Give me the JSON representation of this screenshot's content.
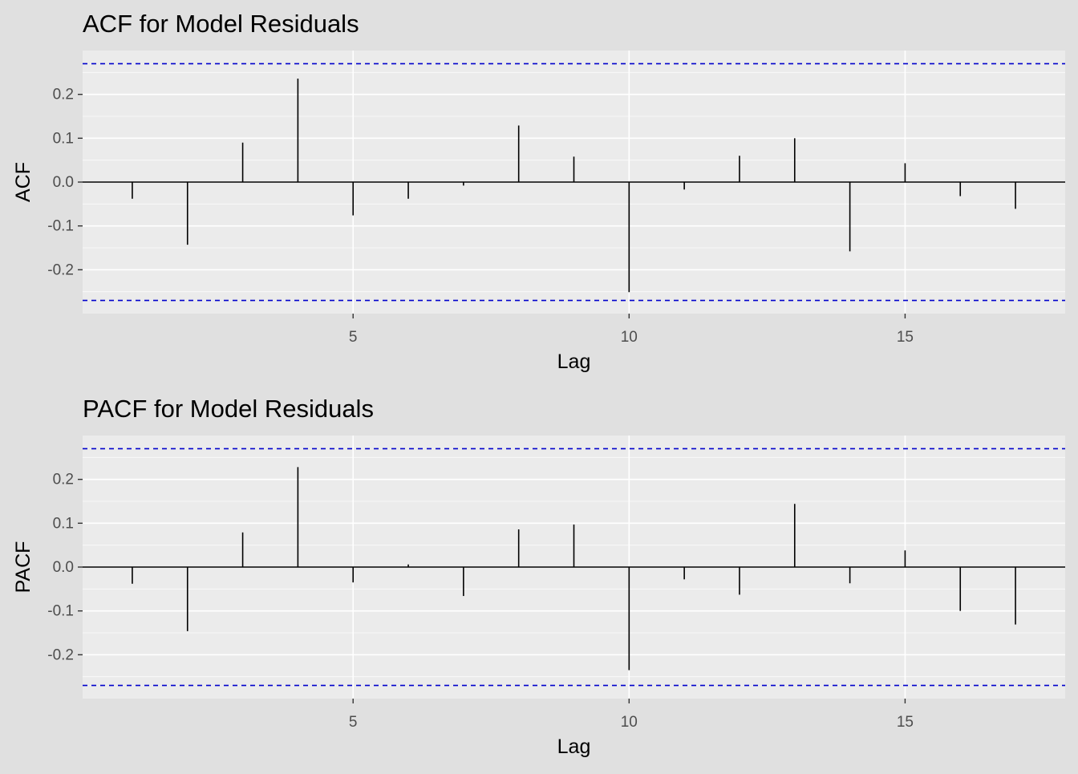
{
  "chart_data": [
    {
      "type": "bar",
      "title": "ACF for Model Residuals",
      "xlabel": "Lag",
      "ylabel": "ACF",
      "x": [
        1,
        2,
        3,
        4,
        5,
        6,
        7,
        8,
        9,
        10,
        11,
        12,
        13,
        14,
        15,
        16,
        17
      ],
      "values": [
        -0.038,
        -0.143,
        0.09,
        0.236,
        -0.076,
        -0.038,
        -0.008,
        0.129,
        0.058,
        -0.251,
        -0.017,
        0.06,
        0.1,
        -0.158,
        0.043,
        -0.032,
        -0.061
      ],
      "xlim": [
        0.1,
        17.9
      ],
      "ylim": [
        -0.3,
        0.3
      ],
      "xticks": [
        5,
        10,
        15
      ],
      "xtick_labels": [
        "5",
        "10",
        "15"
      ],
      "yticks": [
        -0.2,
        -0.1,
        0.0,
        0.1,
        0.2
      ],
      "ytick_labels": [
        "-0.2",
        "-0.1",
        "0.0",
        "0.1",
        "0.2"
      ],
      "confidence_bounds": [
        -0.27,
        0.27
      ],
      "grid": true,
      "colors": {
        "panel": "#ebebeb",
        "background": "#e0e0e0",
        "grid": "#ffffff",
        "bars": "#000000",
        "bounds": "#0000cc"
      }
    },
    {
      "type": "bar",
      "title": "PACF for Model Residuals",
      "xlabel": "Lag",
      "ylabel": "PACF",
      "x": [
        1,
        2,
        3,
        4,
        5,
        6,
        7,
        8,
        9,
        10,
        11,
        12,
        13,
        14,
        15,
        16,
        17
      ],
      "values": [
        -0.038,
        -0.146,
        0.079,
        0.228,
        -0.035,
        0.006,
        -0.066,
        0.086,
        0.097,
        -0.235,
        -0.028,
        -0.063,
        0.144,
        -0.037,
        0.038,
        -0.1,
        -0.131
      ],
      "xlim": [
        0.1,
        17.9
      ],
      "ylim": [
        -0.3,
        0.3
      ],
      "xticks": [
        5,
        10,
        15
      ],
      "xtick_labels": [
        "5",
        "10",
        "15"
      ],
      "yticks": [
        -0.2,
        -0.1,
        0.0,
        0.1,
        0.2
      ],
      "ytick_labels": [
        "-0.2",
        "-0.1",
        "0.0",
        "0.1",
        "0.2"
      ],
      "confidence_bounds": [
        -0.27,
        0.27
      ],
      "grid": true,
      "colors": {
        "panel": "#ebebeb",
        "background": "#e0e0e0",
        "grid": "#ffffff",
        "bars": "#000000",
        "bounds": "#0000cc"
      }
    }
  ]
}
